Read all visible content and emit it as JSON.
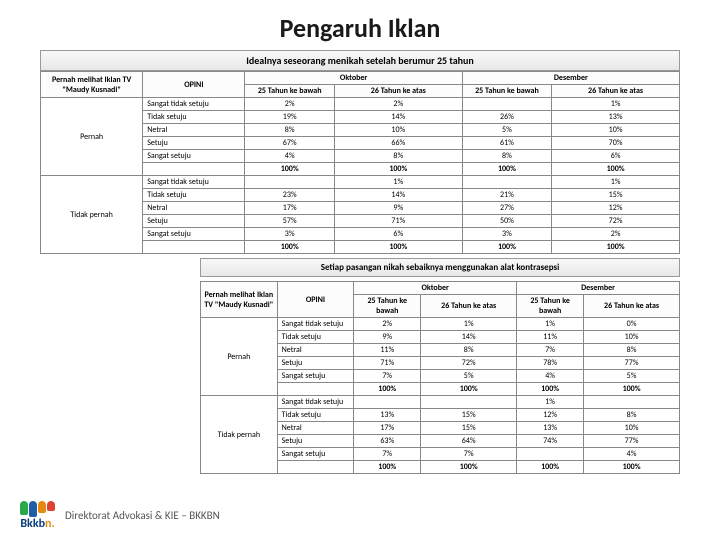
{
  "title": "Pengaruh Iklan",
  "footer": "Direktorat Advokasi & KIE – BKKBN",
  "logo": {
    "text_main": "Bkkb",
    "text_accent": "n."
  },
  "table1": {
    "caption": "Idealnya seseorang menikah setelah berumur 25 tahun",
    "head": {
      "rowhead1": "Pernah melihat Iklan TV \"Maudy Kusnadi\"",
      "rowhead2": "OPINI",
      "okt": "Oktober",
      "des": "Desember",
      "c1": "25 Tahun ke bawah",
      "c2": "26 Tahun ke atas",
      "c3": "25 Tahun ke bawah",
      "c4": "26 Tahun ke atas"
    },
    "groups": [
      {
        "label": "Pernah",
        "rows": [
          {
            "l": "Sangat tidak setuju",
            "v": [
              "2%",
              "2%",
              "",
              "1%"
            ]
          },
          {
            "l": "Tidak setuju",
            "v": [
              "19%",
              "14%",
              "26%",
              "13%"
            ]
          },
          {
            "l": "Netral",
            "v": [
              "8%",
              "10%",
              "5%",
              "10%"
            ]
          },
          {
            "l": "Setuju",
            "v": [
              "67%",
              "66%",
              "61%",
              "70%"
            ]
          },
          {
            "l": "Sangat setuju",
            "v": [
              "4%",
              "8%",
              "8%",
              "6%"
            ]
          },
          {
            "l": "",
            "v": [
              "100%",
              "100%",
              "100%",
              "100%"
            ]
          }
        ]
      },
      {
        "label": "Tidak pernah",
        "rows": [
          {
            "l": "Sangat tidak setuju",
            "v": [
              "",
              "1%",
              "",
              "1%"
            ]
          },
          {
            "l": "Tidak setuju",
            "v": [
              "23%",
              "14%",
              "21%",
              "15%"
            ]
          },
          {
            "l": "Netral",
            "v": [
              "17%",
              "9%",
              "27%",
              "12%"
            ]
          },
          {
            "l": "Setuju",
            "v": [
              "57%",
              "71%",
              "50%",
              "72%"
            ]
          },
          {
            "l": "Sangat setuju",
            "v": [
              "3%",
              "6%",
              "3%",
              "2%"
            ]
          },
          {
            "l": "",
            "v": [
              "100%",
              "100%",
              "100%",
              "100%"
            ]
          }
        ]
      }
    ]
  },
  "table2": {
    "caption": "Setiap pasangan nikah sebaiknya menggunakan alat kontrasepsi",
    "head": {
      "rowhead1": "Pernah melihat Iklan TV \"Maudy Kusnadi\"",
      "rowhead2": "OPINI",
      "okt": "Oktober",
      "des": "Desember",
      "c1": "25 Tahun ke bawah",
      "c2": "26 Tahun ke atas",
      "c3": "25 Tahun ke bawah",
      "c4": "26 Tahun ke atas"
    },
    "groups": [
      {
        "label": "Pernah",
        "rows": [
          {
            "l": "Sangat tidak setuju",
            "v": [
              "2%",
              "1%",
              "1%",
              "0%"
            ]
          },
          {
            "l": "Tidak setuju",
            "v": [
              "9%",
              "14%",
              "11%",
              "10%"
            ]
          },
          {
            "l": "Netral",
            "v": [
              "11%",
              "8%",
              "7%",
              "8%"
            ]
          },
          {
            "l": "Setuju",
            "v": [
              "71%",
              "72%",
              "78%",
              "77%"
            ]
          },
          {
            "l": "Sangat setuju",
            "v": [
              "7%",
              "5%",
              "4%",
              "5%"
            ]
          },
          {
            "l": "",
            "v": [
              "100%",
              "100%",
              "100%",
              "100%"
            ]
          }
        ]
      },
      {
        "label": "Tidak pernah",
        "rows": [
          {
            "l": "Sangat tidak setuju",
            "v": [
              "",
              "",
              "1%",
              ""
            ]
          },
          {
            "l": "Tidak setuju",
            "v": [
              "13%",
              "15%",
              "12%",
              "8%"
            ]
          },
          {
            "l": "Netral",
            "v": [
              "17%",
              "15%",
              "13%",
              "10%"
            ]
          },
          {
            "l": "Setuju",
            "v": [
              "63%",
              "64%",
              "74%",
              "77%"
            ]
          },
          {
            "l": "Sangat setuju",
            "v": [
              "7%",
              "7%",
              "",
              "4%"
            ]
          },
          {
            "l": "",
            "v": [
              "100%",
              "100%",
              "100%",
              "100%"
            ]
          }
        ]
      }
    ]
  }
}
